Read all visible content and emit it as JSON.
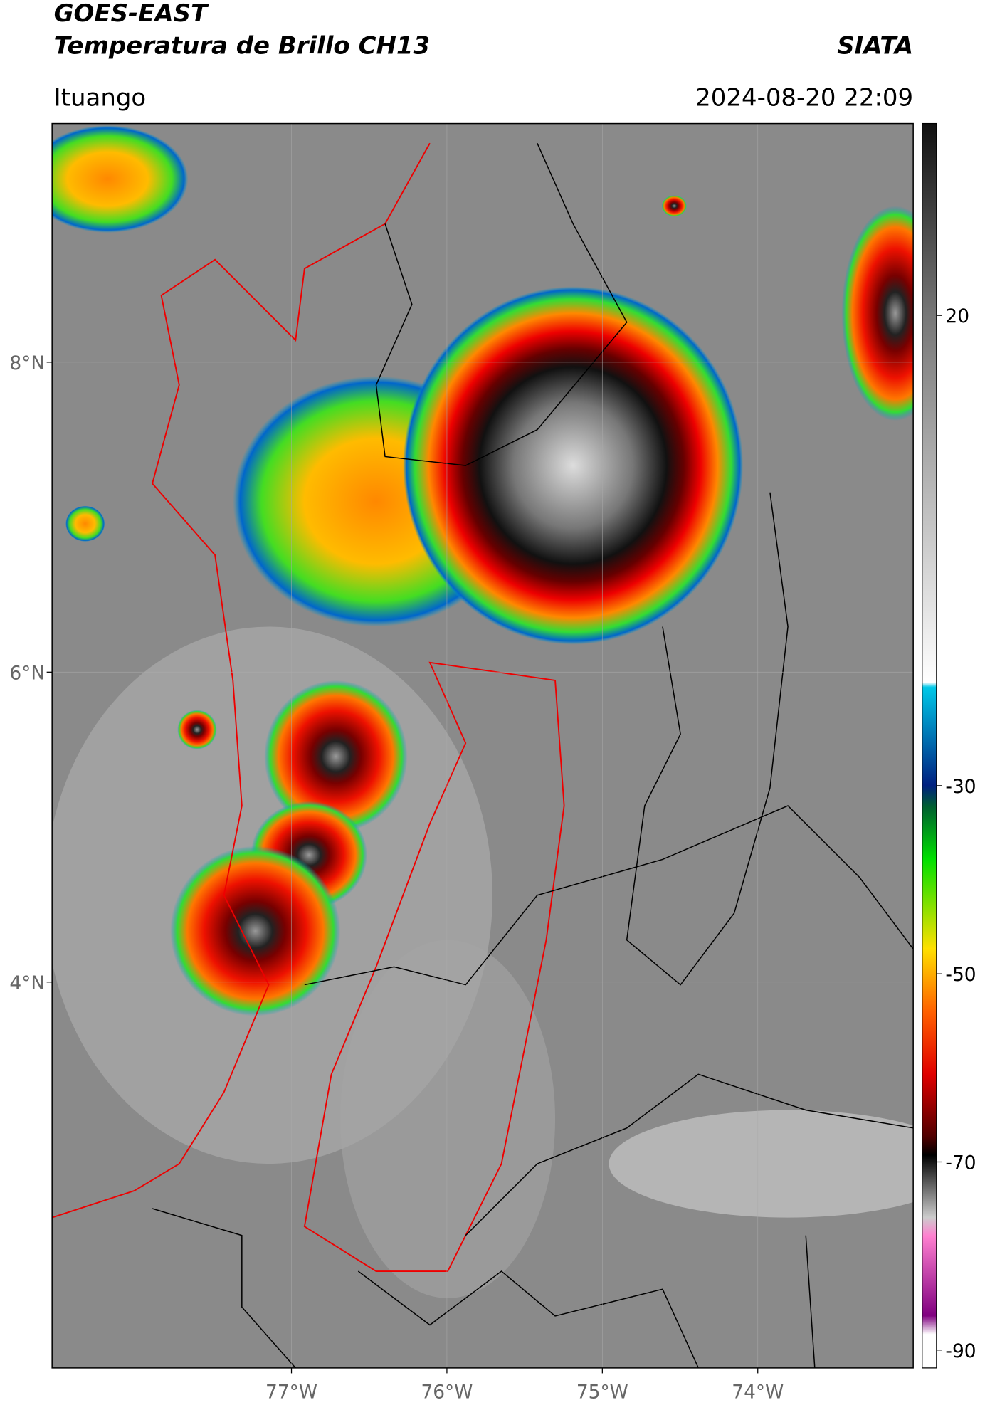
{
  "header": {
    "title": "GOES-EAST",
    "subtitle": "Temperatura de Brillo CH13",
    "org": "SIATA",
    "location": "Ituango",
    "datetime": "2024-08-20 22:09"
  },
  "map": {
    "lat_range": [
      1.51,
      9.54
    ],
    "lon_range": [
      -78.54,
      -73.0
    ],
    "lat_ticks": [
      {
        "value": 8,
        "label": "8°N"
      },
      {
        "value": 6,
        "label": "6°N"
      },
      {
        "value": 4,
        "label": "4°N"
      }
    ],
    "lon_ticks": [
      {
        "value": -77,
        "label": "77°W"
      },
      {
        "value": -76,
        "label": "76°W"
      },
      {
        "value": -75,
        "label": "75°W"
      },
      {
        "value": -74,
        "label": "74°W"
      }
    ]
  },
  "colorbar": {
    "range": [
      -91.9,
      40.4
    ],
    "ticks": [
      20,
      -30,
      -50,
      -70,
      -90
    ]
  }
}
